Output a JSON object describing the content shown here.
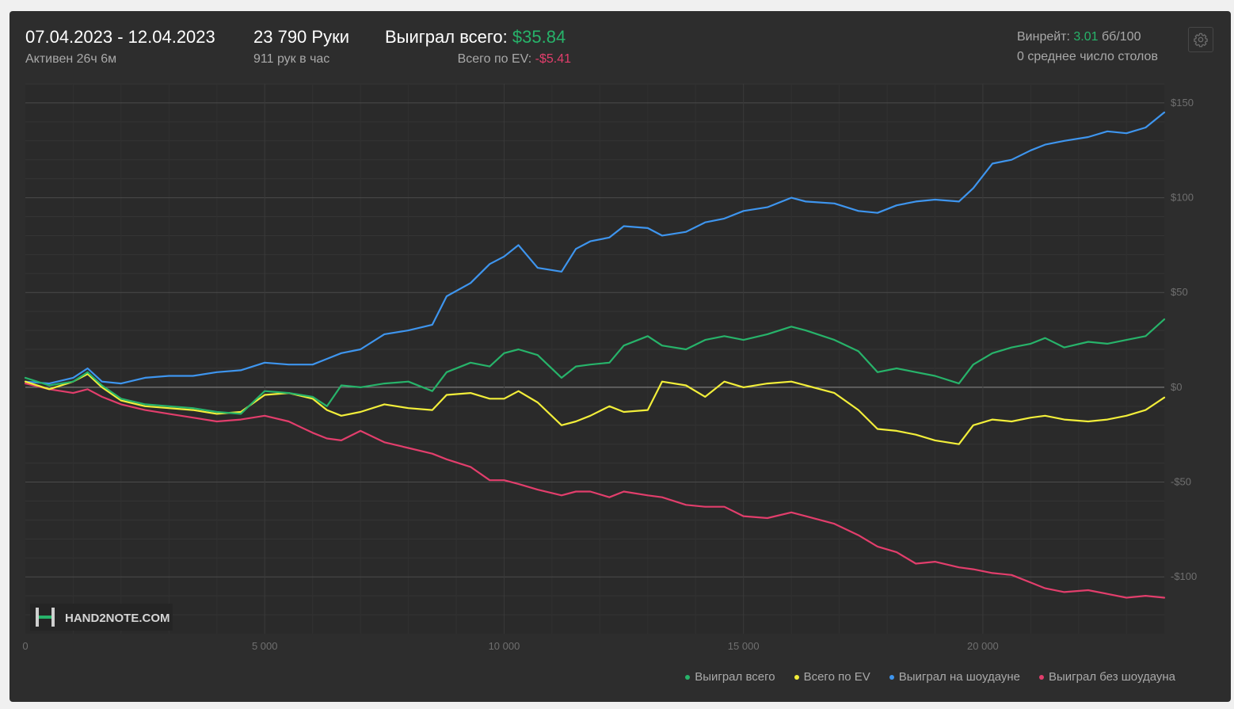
{
  "header": {
    "date_range": "07.04.2023 - 12.04.2023",
    "active_time": "Активен 26ч 6м",
    "hands_total": "23 790 Руки",
    "hands_per_hour": "911 рук в час",
    "won_total_label": "Выиграл всего:",
    "won_total_value": "$35.84",
    "ev_total_label": "Всего по EV:",
    "ev_total_value": "-$5.41",
    "winrate_label": "Винрейт:",
    "winrate_value": "3.01",
    "winrate_unit": "бб/100",
    "avg_tables": "0 среднее число столов",
    "settings_icon": "gear-icon"
  },
  "watermark": "HAND2NOTE.COM",
  "colors": {
    "won_total": "#27b36a",
    "ev_total": "#f2ee3a",
    "showdown": "#3e95ee",
    "non_showdown": "#e23e6c",
    "positive": "#27b36a",
    "negative": "#e23e6c"
  },
  "chart_data": {
    "type": "line",
    "xlim": [
      0,
      23790
    ],
    "ylim": [
      -130,
      160
    ],
    "x_ticks": [
      0,
      5000,
      10000,
      15000,
      20000
    ],
    "x_tick_labels": [
      "0",
      "5 000",
      "10 000",
      "15 000",
      "20 000"
    ],
    "y_ticks": [
      150,
      100,
      50,
      0,
      -50,
      -100
    ],
    "y_tick_labels": [
      "$150",
      "$100",
      "$50",
      "$0",
      "-$50",
      "-$100"
    ],
    "grid": true,
    "legend_position": "bottom-right",
    "series": [
      {
        "name": "Выиграл всего",
        "color": "#27b36a",
        "x": [
          0,
          500,
          1000,
          1300,
          1600,
          2000,
          2500,
          3000,
          3500,
          4000,
          4500,
          5000,
          5500,
          6000,
          6300,
          6600,
          7000,
          7500,
          8000,
          8500,
          8800,
          9300,
          9700,
          10000,
          10300,
          10700,
          11200,
          11500,
          11800,
          12200,
          12500,
          13000,
          13300,
          13800,
          14200,
          14600,
          15000,
          15500,
          16000,
          16300,
          16900,
          17400,
          17800,
          18200,
          18600,
          19000,
          19500,
          19800,
          20200,
          20600,
          21000,
          21300,
          21700,
          22200,
          22600,
          23000,
          23400,
          23790
        ],
        "y": [
          5,
          1,
          3,
          8,
          1,
          -6,
          -9,
          -10,
          -11,
          -13,
          -14,
          -2,
          -3,
          -5,
          -10,
          1,
          0,
          2,
          3,
          -2,
          8,
          13,
          11,
          18,
          20,
          17,
          5,
          11,
          12,
          13,
          22,
          27,
          22,
          20,
          25,
          27,
          25,
          28,
          32,
          30,
          25,
          19,
          8,
          10,
          8,
          6,
          2,
          12,
          18,
          21,
          23,
          26,
          21,
          24,
          23,
          25,
          27,
          35.84
        ]
      },
      {
        "name": "Всего по EV",
        "color": "#f2ee3a",
        "x": [
          0,
          500,
          1000,
          1300,
          1600,
          2000,
          2500,
          3000,
          3500,
          4000,
          4500,
          5000,
          5500,
          6000,
          6300,
          6600,
          7000,
          7500,
          8000,
          8500,
          8800,
          9300,
          9700,
          10000,
          10300,
          10700,
          11200,
          11500,
          11800,
          12200,
          12500,
          13000,
          13300,
          13800,
          14200,
          14600,
          15000,
          15500,
          16000,
          16300,
          16900,
          17400,
          17800,
          18200,
          18600,
          19000,
          19500,
          19800,
          20200,
          20600,
          21000,
          21300,
          21700,
          22200,
          22600,
          23000,
          23400,
          23790
        ],
        "y": [
          3,
          -1,
          3,
          7,
          0,
          -7,
          -10,
          -11,
          -12,
          -14,
          -13,
          -4,
          -3,
          -6,
          -12,
          -15,
          -13,
          -9,
          -11,
          -12,
          -4,
          -3,
          -6,
          -6,
          -2,
          -8,
          -20,
          -18,
          -15,
          -10,
          -13,
          -12,
          3,
          1,
          -5,
          3,
          0,
          2,
          3,
          1,
          -3,
          -12,
          -22,
          -23,
          -25,
          -28,
          -30,
          -20,
          -17,
          -18,
          -16,
          -15,
          -17,
          -18,
          -17,
          -15,
          -12,
          -5.41
        ]
      },
      {
        "name": "Выиграл на шоудауне",
        "color": "#3e95ee",
        "x": [
          0,
          500,
          1000,
          1300,
          1600,
          2000,
          2500,
          3000,
          3500,
          4000,
          4500,
          5000,
          5500,
          6000,
          6300,
          6600,
          7000,
          7500,
          8000,
          8500,
          8800,
          9300,
          9700,
          10000,
          10300,
          10700,
          11200,
          11500,
          11800,
          12200,
          12500,
          13000,
          13300,
          13800,
          14200,
          14600,
          15000,
          15500,
          16000,
          16300,
          16900,
          17400,
          17800,
          18200,
          18600,
          19000,
          19500,
          19800,
          20200,
          20600,
          21000,
          21300,
          21700,
          22200,
          22600,
          23000,
          23400,
          23790
        ],
        "y": [
          3,
          2,
          5,
          10,
          3,
          2,
          5,
          6,
          6,
          8,
          9,
          13,
          12,
          12,
          15,
          18,
          20,
          28,
          30,
          33,
          48,
          55,
          65,
          69,
          75,
          63,
          61,
          73,
          77,
          79,
          85,
          84,
          80,
          82,
          87,
          89,
          93,
          95,
          100,
          98,
          97,
          93,
          92,
          96,
          98,
          99,
          98,
          105,
          118,
          120,
          125,
          128,
          130,
          132,
          135,
          134,
          137,
          145
        ]
      },
      {
        "name": "Выиграл без шоудауна",
        "color": "#e23e6c",
        "x": [
          0,
          500,
          1000,
          1300,
          1600,
          2000,
          2500,
          3000,
          3500,
          4000,
          4500,
          5000,
          5500,
          6000,
          6300,
          6600,
          7000,
          7500,
          8000,
          8500,
          8800,
          9300,
          9700,
          10000,
          10300,
          10700,
          11200,
          11500,
          11800,
          12200,
          12500,
          13000,
          13300,
          13800,
          14200,
          14600,
          15000,
          15500,
          16000,
          16300,
          16900,
          17400,
          17800,
          18200,
          18600,
          19000,
          19500,
          19800,
          20200,
          20600,
          21000,
          21300,
          21700,
          22200,
          22600,
          23000,
          23400,
          23790
        ],
        "y": [
          2,
          -1,
          -3,
          -1,
          -5,
          -9,
          -12,
          -14,
          -16,
          -18,
          -17,
          -15,
          -18,
          -24,
          -27,
          -28,
          -23,
          -29,
          -32,
          -35,
          -38,
          -42,
          -49,
          -49,
          -51,
          -54,
          -57,
          -55,
          -55,
          -58,
          -55,
          -57,
          -58,
          -62,
          -63,
          -63,
          -68,
          -69,
          -66,
          -68,
          -72,
          -78,
          -84,
          -87,
          -93,
          -92,
          -95,
          -96,
          -98,
          -99,
          -103,
          -106,
          -108,
          -107,
          -109,
          -111,
          -110,
          -111
        ]
      }
    ]
  }
}
